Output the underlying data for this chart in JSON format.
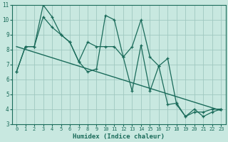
{
  "xlabel": "Humidex (Indice chaleur)",
  "xlim": [
    -0.5,
    23.5
  ],
  "ylim": [
    3,
    11
  ],
  "xticks": [
    0,
    1,
    2,
    3,
    4,
    5,
    6,
    7,
    8,
    9,
    10,
    11,
    12,
    13,
    14,
    15,
    16,
    17,
    18,
    19,
    20,
    21,
    22,
    23
  ],
  "yticks": [
    3,
    4,
    5,
    6,
    7,
    8,
    9,
    10,
    11
  ],
  "background_color": "#c8e8e0",
  "grid_color": "#a0c8c0",
  "line_color": "#1a6b5a",
  "line1_x": [
    0,
    1,
    2,
    3,
    4,
    5,
    6,
    7,
    8,
    9,
    10,
    11,
    12,
    13,
    14,
    15,
    16,
    17,
    18,
    19,
    20,
    21,
    22,
    23
  ],
  "line1_y": [
    6.5,
    8.2,
    8.2,
    11.0,
    10.2,
    9.0,
    8.5,
    7.2,
    6.5,
    6.7,
    10.3,
    10.0,
    7.5,
    8.2,
    10.0,
    7.5,
    6.9,
    7.4,
    4.3,
    3.5,
    4.0,
    3.5,
    3.8,
    4.0
  ],
  "line2_x": [
    0,
    1,
    2,
    3,
    4,
    5,
    6,
    7,
    8,
    9,
    10,
    11,
    12,
    13,
    14,
    15,
    16,
    17,
    18,
    19,
    20,
    21,
    22,
    23
  ],
  "line2_y": [
    6.5,
    8.2,
    8.2,
    10.2,
    9.5,
    9.0,
    8.5,
    7.2,
    8.5,
    8.2,
    8.2,
    8.2,
    7.5,
    5.2,
    8.3,
    5.2,
    6.9,
    4.3,
    4.4,
    3.5,
    3.8,
    3.8,
    4.0,
    4.0
  ],
  "trend_x": [
    0,
    23
  ],
  "trend_y": [
    8.2,
    3.9
  ]
}
